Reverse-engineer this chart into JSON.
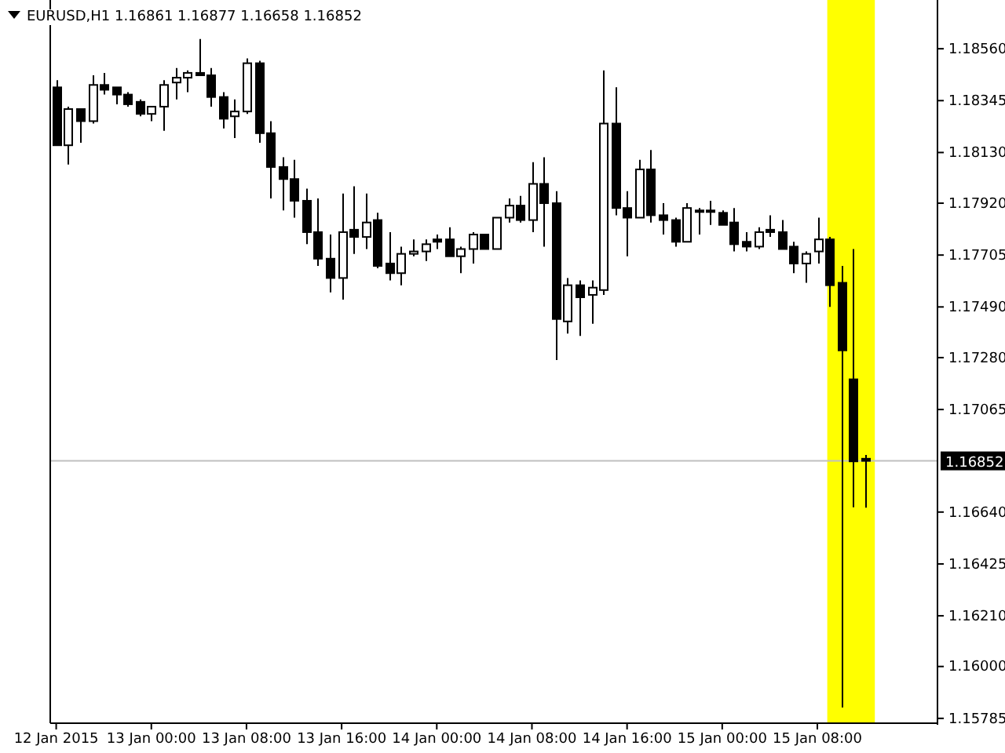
{
  "chart_data": {
    "type": "candlestick",
    "title": "EURUSD,H1  1.16861 1.16877 1.16658 1.16852",
    "x": [
      "2015-01-12T16:00",
      "2015-01-12T17:00",
      "2015-01-12T18:00",
      "2015-01-12T19:00",
      "2015-01-12T20:00",
      "2015-01-12T21:00",
      "2015-01-12T22:00",
      "2015-01-12T23:00",
      "2015-01-13T00:00",
      "2015-01-13T01:00",
      "2015-01-13T02:00",
      "2015-01-13T03:00",
      "2015-01-13T04:00",
      "2015-01-13T05:00",
      "2015-01-13T06:00",
      "2015-01-13T07:00",
      "2015-01-13T08:00",
      "2015-01-13T09:00",
      "2015-01-13T10:00",
      "2015-01-13T11:00",
      "2015-01-13T12:00",
      "2015-01-13T13:00",
      "2015-01-13T14:00",
      "2015-01-13T15:00",
      "2015-01-13T16:00",
      "2015-01-13T17:00",
      "2015-01-13T18:00",
      "2015-01-13T19:00",
      "2015-01-13T20:00",
      "2015-01-13T21:00",
      "2015-01-13T22:00",
      "2015-01-13T23:00",
      "2015-01-14T00:00",
      "2015-01-14T01:00",
      "2015-01-14T02:00",
      "2015-01-14T03:00",
      "2015-01-14T04:00",
      "2015-01-14T05:00",
      "2015-01-14T06:00",
      "2015-01-14T07:00",
      "2015-01-14T08:00",
      "2015-01-14T09:00",
      "2015-01-14T10:00",
      "2015-01-14T11:00",
      "2015-01-14T12:00",
      "2015-01-14T13:00",
      "2015-01-14T14:00",
      "2015-01-14T15:00",
      "2015-01-14T16:00",
      "2015-01-14T17:00",
      "2015-01-14T18:00",
      "2015-01-14T19:00",
      "2015-01-14T20:00",
      "2015-01-14T21:00",
      "2015-01-14T22:00",
      "2015-01-14T23:00",
      "2015-01-15T00:00",
      "2015-01-15T01:00",
      "2015-01-15T02:00",
      "2015-01-15T03:00",
      "2015-01-15T04:00",
      "2015-01-15T05:00",
      "2015-01-15T06:00",
      "2015-01-15T07:00",
      "2015-01-15T08:00",
      "2015-01-15T09:00",
      "2015-01-15T10:00",
      "2015-01-15T11:00",
      "2015-01-15T12:00"
    ],
    "ohlc": [
      [
        1.184,
        1.1843,
        1.1816,
        1.1816
      ],
      [
        1.1816,
        1.1832,
        1.1808,
        1.1831
      ],
      [
        1.1831,
        1.1831,
        1.1817,
        1.1826
      ],
      [
        1.1826,
        1.1845,
        1.1825,
        1.1841
      ],
      [
        1.1841,
        1.1846,
        1.1837,
        1.1839
      ],
      [
        1.184,
        1.184,
        1.1833,
        1.1837
      ],
      [
        1.1837,
        1.1838,
        1.1832,
        1.1833
      ],
      [
        1.1834,
        1.1835,
        1.1828,
        1.1829
      ],
      [
        1.1829,
        1.1832,
        1.1826,
        1.1832
      ],
      [
        1.1832,
        1.1843,
        1.1822,
        1.1841
      ],
      [
        1.1842,
        1.1848,
        1.1835,
        1.1844
      ],
      [
        1.1844,
        1.1847,
        1.1838,
        1.1846
      ],
      [
        1.1846,
        1.186,
        1.1845,
        1.1845
      ],
      [
        1.1845,
        1.1848,
        1.1832,
        1.1836
      ],
      [
        1.1836,
        1.1838,
        1.1823,
        1.1827
      ],
      [
        1.1828,
        1.1835,
        1.1819,
        1.183
      ],
      [
        1.183,
        1.1852,
        1.1829,
        1.185
      ],
      [
        1.185,
        1.1851,
        1.1817,
        1.1821
      ],
      [
        1.1821,
        1.1826,
        1.1794,
        1.1807
      ],
      [
        1.1807,
        1.1811,
        1.1789,
        1.1802
      ],
      [
        1.1802,
        1.181,
        1.1786,
        1.1793
      ],
      [
        1.1793,
        1.1798,
        1.1775,
        1.178
      ],
      [
        1.178,
        1.1794,
        1.1766,
        1.1769
      ],
      [
        1.1769,
        1.1779,
        1.1755,
        1.1761
      ],
      [
        1.1761,
        1.1796,
        1.1752,
        1.178
      ],
      [
        1.1781,
        1.1799,
        1.1771,
        1.1778
      ],
      [
        1.1778,
        1.1796,
        1.1773,
        1.1784
      ],
      [
        1.1785,
        1.1788,
        1.1765,
        1.1766
      ],
      [
        1.1767,
        1.178,
        1.176,
        1.1763
      ],
      [
        1.1763,
        1.1774,
        1.1758,
        1.1771
      ],
      [
        1.1771,
        1.1777,
        1.177,
        1.1772
      ],
      [
        1.1772,
        1.1777,
        1.1768,
        1.1775
      ],
      [
        1.1777,
        1.1779,
        1.1773,
        1.1776
      ],
      [
        1.1777,
        1.1782,
        1.177,
        1.177
      ],
      [
        1.177,
        1.1774,
        1.1763,
        1.1773
      ],
      [
        1.1773,
        1.178,
        1.1767,
        1.1779
      ],
      [
        1.1779,
        1.1779,
        1.1773,
        1.1773
      ],
      [
        1.1773,
        1.1786,
        1.1773,
        1.1786
      ],
      [
        1.1786,
        1.1794,
        1.1784,
        1.1791
      ],
      [
        1.1791,
        1.1795,
        1.1784,
        1.1785
      ],
      [
        1.1785,
        1.1809,
        1.178,
        1.18
      ],
      [
        1.18,
        1.1811,
        1.1774,
        1.1792
      ],
      [
        1.1792,
        1.1797,
        1.1727,
        1.1744
      ],
      [
        1.1743,
        1.1761,
        1.1738,
        1.1758
      ],
      [
        1.1758,
        1.176,
        1.1737,
        1.1753
      ],
      [
        1.1754,
        1.176,
        1.1742,
        1.1757
      ],
      [
        1.1756,
        1.1847,
        1.1754,
        1.1825
      ],
      [
        1.1825,
        1.184,
        1.1787,
        1.179
      ],
      [
        1.179,
        1.1797,
        1.177,
        1.1786
      ],
      [
        1.1786,
        1.181,
        1.1786,
        1.1806
      ],
      [
        1.1806,
        1.1814,
        1.1784,
        1.1787
      ],
      [
        1.1787,
        1.1792,
        1.1779,
        1.1785
      ],
      [
        1.1785,
        1.1786,
        1.1774,
        1.1776
      ],
      [
        1.1776,
        1.1792,
        1.1776,
        1.179
      ],
      [
        1.1789,
        1.179,
        1.1779,
        1.1789
      ],
      [
        1.1789,
        1.1793,
        1.1783,
        1.1789
      ],
      [
        1.1788,
        1.1789,
        1.1783,
        1.1783
      ],
      [
        1.1784,
        1.179,
        1.1772,
        1.1775
      ],
      [
        1.1776,
        1.178,
        1.1772,
        1.1774
      ],
      [
        1.1774,
        1.1782,
        1.1773,
        1.178
      ],
      [
        1.1781,
        1.1787,
        1.1778,
        1.178
      ],
      [
        1.178,
        1.1785,
        1.1773,
        1.1773
      ],
      [
        1.1774,
        1.1776,
        1.1763,
        1.1767
      ],
      [
        1.1767,
        1.1772,
        1.1759,
        1.1771
      ],
      [
        1.1772,
        1.1786,
        1.1767,
        1.1777
      ],
      [
        1.1777,
        1.1778,
        1.1749,
        1.1758
      ],
      [
        1.1759,
        1.1766,
        1.1583,
        1.1731
      ],
      [
        1.1719,
        1.1773,
        1.1666,
        1.1685
      ],
      [
        1.16861,
        1.16877,
        1.16658,
        1.16852
      ]
    ],
    "xlim": [
      "2015-01-12T15:30",
      "2015-01-15T18:06"
    ],
    "xticks": [
      {
        "value": "2015-01-12T16:00",
        "label": "12 Jan 2015"
      },
      {
        "value": "2015-01-13T00:00",
        "label": "13 Jan 00:00"
      },
      {
        "value": "2015-01-13T08:00",
        "label": "13 Jan 08:00"
      },
      {
        "value": "2015-01-13T16:00",
        "label": "13 Jan 16:00"
      },
      {
        "value": "2015-01-14T00:00",
        "label": "14 Jan 00:00"
      },
      {
        "value": "2015-01-14T08:00",
        "label": "14 Jan 08:00"
      },
      {
        "value": "2015-01-14T16:00",
        "label": "14 Jan 16:00"
      },
      {
        "value": "2015-01-15T00:00",
        "label": "15 Jan 00:00"
      },
      {
        "value": "2015-01-15T08:00",
        "label": "15 Jan 08:00"
      }
    ],
    "ylim": [
      1.15765,
      1.18762
    ],
    "yticks": [
      {
        "value": 1.1856,
        "label": "1.18560"
      },
      {
        "value": 1.18345,
        "label": "1.18345"
      },
      {
        "value": 1.1813,
        "label": "1.18130"
      },
      {
        "value": 1.1792,
        "label": "1.17920"
      },
      {
        "value": 1.17705,
        "label": "1.17705"
      },
      {
        "value": 1.1749,
        "label": "1.17490"
      },
      {
        "value": 1.1728,
        "label": "1.17280"
      },
      {
        "value": 1.17065,
        "label": "1.17065"
      },
      {
        "value": 1.1664,
        "label": "1.16640"
      },
      {
        "value": 1.16425,
        "label": "1.16425"
      },
      {
        "value": 1.1621,
        "label": "1.16210"
      },
      {
        "value": 1.16,
        "label": "1.16000"
      },
      {
        "value": 1.15785,
        "label": "1.15785"
      }
    ],
    "ref_lines": [
      {
        "axis": "y",
        "value": 1.16852,
        "label": "1.16852",
        "color": "#c0c0c0"
      }
    ],
    "bands": [
      {
        "axis": "x",
        "from": "2015-01-15T08:50",
        "to": "2015-01-15T12:50",
        "color": "#ffff00"
      }
    ]
  }
}
